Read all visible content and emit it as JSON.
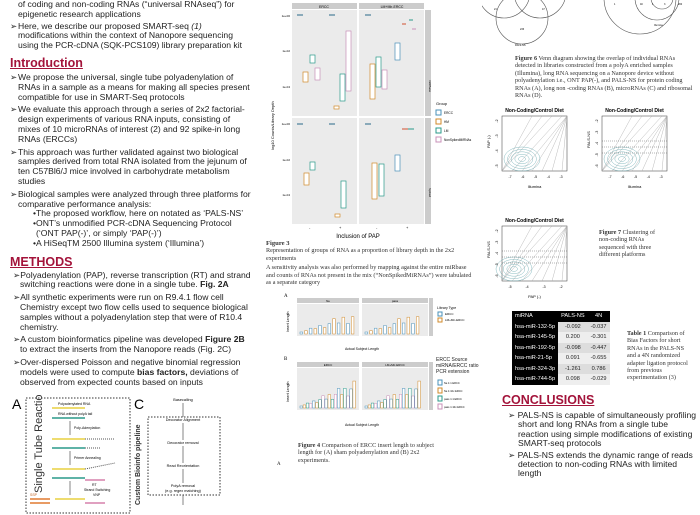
{
  "left": {
    "intro_top": [
      "of coding and non-coding RNAs (“universal RNAseq”) for epigenetic research applications",
      "Here, we describe our proposed SMART-seq ",
      "(1)",
      " modifications within the context of Nanopore sequencing using the PCR-cDNA (SQK-PCS109) library preparation kit"
    ],
    "introduction_title": "Introduction",
    "introduction": [
      "We propose the universal, single tube polyadenylation of RNAs in a sample as a means for making all species present compatible for use in SMART-Seq protocols",
      "We evaluate this approach through a series of 2x2 factorial-design experiments of various RNA inputs, consisting of mixes of 10 microRNAs of interest (2) and 92 spike-in long RNAs (ERCCs)",
      "This approach was further validated against two biological samples derived from total RNA isolated from the jejunum of ten C57Bl6/J mice involved in carbohydrate metabolism studies",
      "Biological samples were analyzed through three platforms for comparative performance analysis:"
    ],
    "platforms": [
      "•The proposed workflow, here on notated as ‘PALS-NS’",
      "•ONT’s unmodified PCR-cDNA Sequencing Protocol (‘ONT PAP(-)’, or simply ‘PAP(-)’)",
      "•A HiSeqTM 2500 Illumina system (‘Illumina’)"
    ],
    "methods_title": "METHODS",
    "methods": [
      {
        "text": "Polyadenylation (PAP), reverse transcription (RT) and strand switching reactions were done in a single tube. ",
        "bold": "Fig. 2A",
        "tail": ""
      },
      {
        "text": "All synthetic experiments were run on R9.4.1 flow cell Chemistry except two flow cells used to sequence biological samples without a polyadenylation step that were of R10.4 chemistry.",
        "bold": "",
        "tail": ""
      },
      {
        "text": "A custom bioinformatics pipeline was developed ",
        "bold": "Figure 2B",
        "tail": " to extract the inserts from the Nanopore reads (Fig. 2C)"
      },
      {
        "text": "Over-dispersed Poisson  and negative binomial regression models were used to compute ",
        "bold": "bias factors,",
        "tail": " deviations of observed from expected counts based on inputs"
      }
    ],
    "fig2": {
      "label_a": "A",
      "label_c": "C",
      "vertical_a": "Single Tube Reaction",
      "vertical_c": "Custom Bioinfo pipeline",
      "a_steps": [
        "Polyadenylated RNA",
        "RNA without polyA tail",
        "Poly-Adenylation",
        "Primer Annealing",
        "RT",
        "Strand Switching",
        "SSP",
        "VNP"
      ],
      "c_steps": [
        "Basecalling",
        "Decorator Alignment",
        "Decorator removal",
        "Read Reorientation",
        "PolyA removal",
        "(e.g. regex matching)"
      ]
    }
  },
  "mid": {
    "fig3": {
      "strips": [
        "ERCC",
        "LM+Mir-ERCC"
      ],
      "row_strips": [
        "miRBase",
        "Spiked"
      ],
      "ylabel": "log10 Counts/Library Depth",
      "xlabel": "Inclusion of PAP",
      "yticks": [
        "1e+00",
        "1e-02",
        "1e-04"
      ],
      "xticks": [
        "-",
        "+"
      ],
      "legend_title": "Group",
      "legend": [
        {
          "name": "ERCC",
          "color": "#4a90b8"
        },
        {
          "name": "HM",
          "color": "#d08a2a"
        },
        {
          "name": "LM",
          "color": "#2a9a8a"
        },
        {
          "name": "NonSpikedMiRNAs",
          "color": "#c890b8"
        }
      ]
    },
    "fig3_caption": {
      "title": "Figure 3",
      "line1": "Representation of groups of RNA as a proportion of library depth in the 2x2 experiments",
      "line2": "A sensitivity analysis was also performed by mapping against the entire miRbase  and counts of RNAs not present in the mix (“NonSpikedMiRNAs”) were tabulated as a separate category"
    },
    "fig4": {
      "label_a": "A",
      "label_b": "B",
      "a_strips": [
        "Ne",
        "pass"
      ],
      "b_strips": [
        "ERCC",
        "LM+Mir-ERCC"
      ],
      "ylabel": "Insert Length",
      "xlabel": "Actual Subject Length",
      "a_legend_title": "Library Type",
      "a_legend": [
        "ERCC",
        "LM+Mir-ERCC"
      ],
      "b_legend_title": "ERCC Source miRNA/ERCC ratio PCR extension",
      "b_legend": [
        "Ne 1:1 ERCC",
        "Ne 1:10x ERCC",
        "pass 1:1 ERCC",
        "pass 1:10x ERCC"
      ]
    },
    "fig4_caption": {
      "title": "Figure  4",
      "text": " Comparison of ERCC insert length to subject length  for (A) sham polyadenylation and (B) 2x2 experiments."
    },
    "bottom_label": "A"
  },
  "right": {
    "venn": {
      "left_counts": [
        "21",
        "47",
        "233"
      ],
      "left_label": "PALS-NS",
      "right_counts": [
        "1",
        "40",
        "1",
        "3",
        "200"
      ],
      "right_label": "Illumina"
    },
    "fig6_caption": {
      "title": "Figure 6",
      "text": " Venn diagram showing the overlap of individual RNAs detected in libraries constructed from a polyA enriched samples (Illumina), long RNA sequencing on a Nanopore device without polyadenylation i.e., ONT PAP(-), and PALS-NS for protein coding RNAs (A), long non -coding RNAs (B), microRNAs (C) and ribosomal RNAs (D)."
    },
    "plots": [
      {
        "title": "Non-Coding/Control Diet",
        "ylabel": "PAP (-)",
        "xlabel": "Illumina",
        "xticks": [
          "-7",
          "-6",
          "-5",
          "-4",
          "-3"
        ],
        "yticks": [
          "-2",
          "-3",
          "-4",
          "-5"
        ]
      },
      {
        "title": "Non-Coding/Control Diet",
        "ylabel": "PALS-NS",
        "xlabel": "Illumina",
        "xticks": [
          "-7",
          "-6",
          "-5",
          "-4",
          "-3"
        ],
        "yticks": [
          "-2",
          "-3",
          "-4",
          "-5",
          "-6"
        ]
      },
      {
        "title": "Non-Coding/Control Diet",
        "ylabel": "PALS-NS",
        "xlabel": "PAP (-)",
        "xticks": [
          "-5",
          "-4",
          "-3",
          "-2"
        ],
        "yticks": [
          "-2",
          "-3",
          "-4",
          "-5",
          "-6"
        ]
      }
    ],
    "fig7_caption": {
      "title": "Figure  7",
      "text": " Clustering of  non-coding RNAs sequenced with three different platforms"
    },
    "table": {
      "headers": [
        "miRNA",
        "PALS-NS",
        "4N"
      ],
      "rows": [
        [
          "hsa-miR-132-5p",
          "-0.092",
          "-0.037"
        ],
        [
          "hsa-miR-145-5p",
          "0.200",
          "-0.301"
        ],
        [
          "hsa-miR-192-5p",
          "-0.098",
          "-0.447"
        ],
        [
          "hsa-miR-21-5p",
          "0.091",
          "-0.655"
        ],
        [
          "hsa-miR-324-3p",
          "-1.261",
          "0.786"
        ],
        [
          "hsa-miR-744-5p",
          "0.098",
          "-0.029"
        ]
      ]
    },
    "table_caption": {
      "title": "Table 1",
      "text": " Comparison of Bias Factors for short RNAs in the PALS-NS and a 4N randomized adapter ligation protocol from previous experimentation (3)"
    },
    "conclusions_title": "CONCLUSIONS",
    "conclusions": [
      "PALS-NS is capable of simultaneously profiling short and long RNAs from a single tube reaction using simple modifications of existing SMART-seq protocols",
      "PALS-NS extends the dynamic range of reads detection to non-coding RNAs with limited length"
    ]
  }
}
